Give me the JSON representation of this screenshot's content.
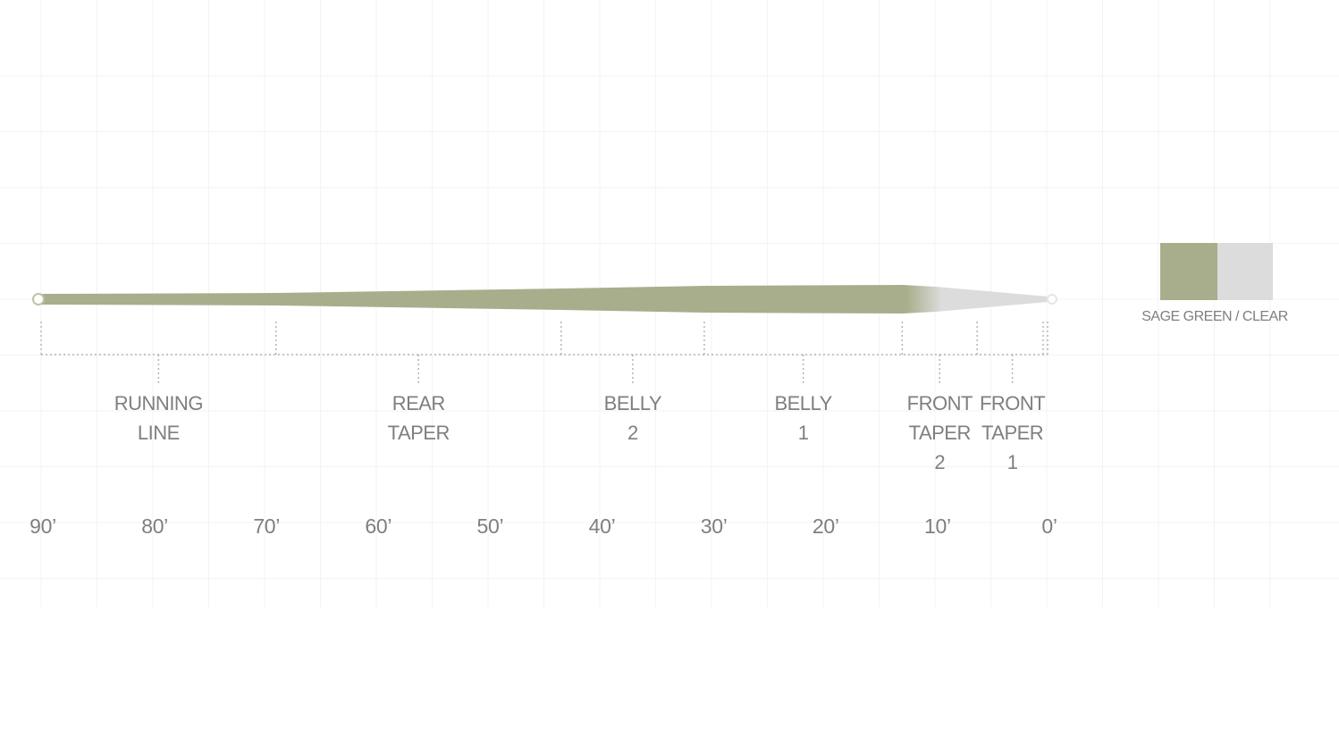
{
  "diagram": {
    "line_total_ft": 90,
    "line_color_main": "#a8ae8c",
    "line_color_tip": "#dcdcdc",
    "segments": [
      {
        "lines": [
          "RUNNING",
          "LINE"
        ],
        "start_ft": 90,
        "end_ft": 69
      },
      {
        "lines": [
          "REAR",
          "TAPER"
        ],
        "start_ft": 69,
        "end_ft": 43.5
      },
      {
        "lines": [
          "BELLY",
          "2"
        ],
        "start_ft": 43.5,
        "end_ft": 30.7
      },
      {
        "lines": [
          "BELLY",
          "1"
        ],
        "start_ft": 30.7,
        "end_ft": 13
      },
      {
        "lines": [
          "FRONT",
          "TAPER",
          "2"
        ],
        "start_ft": 13,
        "end_ft": 6.3
      },
      {
        "lines": [
          "FRONT",
          "TAPER",
          "1"
        ],
        "start_ft": 6.3,
        "end_ft": 0
      }
    ],
    "scale_ticks": [
      "90’",
      "80’",
      "70’",
      "60’",
      "50’",
      "40’",
      "30’",
      "20’",
      "10’",
      "0’"
    ]
  },
  "swatch": {
    "label": "SAGE GREEN / CLEAR",
    "colors": [
      "#a8ae8c",
      "#dcdcdc"
    ]
  }
}
